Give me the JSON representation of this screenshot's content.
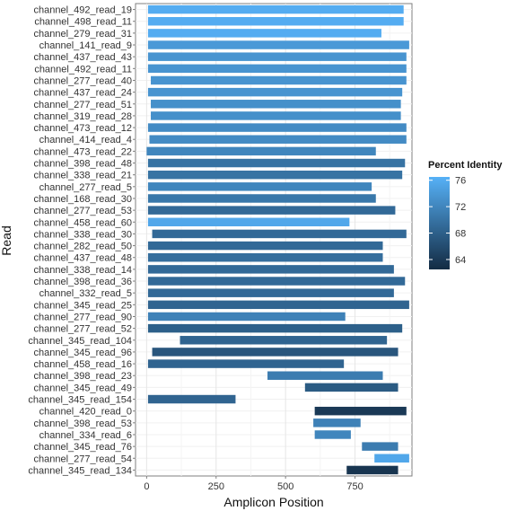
{
  "chart_data": {
    "type": "bar",
    "orientation": "horizontal-range",
    "xlabel": "Amplicon Position",
    "ylabel": "Read",
    "xlim": [
      -40,
      955
    ],
    "xticks": [
      0,
      250,
      500,
      750
    ],
    "grid": true,
    "legend": {
      "title": "Percent Identity",
      "placement": "right",
      "min": 62.5,
      "max": 76.5,
      "ticks": [
        64,
        68,
        72,
        76
      ],
      "color_low": "#132B43",
      "color_high": "#56B1F7"
    },
    "reads": [
      {
        "name": "channel_492_read_19",
        "start": 5,
        "end": 925,
        "identity": 76
      },
      {
        "name": "channel_498_read_11",
        "start": 5,
        "end": 925,
        "identity": 76
      },
      {
        "name": "channel_279_read_31",
        "start": 5,
        "end": 845,
        "identity": 76
      },
      {
        "name": "channel_141_read_9",
        "start": 5,
        "end": 945,
        "identity": 74
      },
      {
        "name": "channel_437_read_43",
        "start": 5,
        "end": 935,
        "identity": 73.5
      },
      {
        "name": "channel_492_read_11",
        "start": 5,
        "end": 935,
        "identity": 73.5
      },
      {
        "name": "channel_277_read_40",
        "start": 15,
        "end": 935,
        "identity": 73.5
      },
      {
        "name": "channel_437_read_24",
        "start": 5,
        "end": 920,
        "identity": 73.5
      },
      {
        "name": "channel_277_read_51",
        "start": 15,
        "end": 915,
        "identity": 73
      },
      {
        "name": "channel_319_read_28",
        "start": 15,
        "end": 915,
        "identity": 73
      },
      {
        "name": "channel_473_read_12",
        "start": 5,
        "end": 935,
        "identity": 72.5
      },
      {
        "name": "channel_414_read_4",
        "start": 10,
        "end": 935,
        "identity": 72.5
      },
      {
        "name": "channel_473_read_22",
        "start": 0,
        "end": 825,
        "identity": 72
      },
      {
        "name": "channel_398_read_48",
        "start": 5,
        "end": 930,
        "identity": 70
      },
      {
        "name": "channel_338_read_21",
        "start": 5,
        "end": 920,
        "identity": 70
      },
      {
        "name": "channel_277_read_5",
        "start": 5,
        "end": 810,
        "identity": 72
      },
      {
        "name": "channel_168_read_30",
        "start": 5,
        "end": 825,
        "identity": 70.5
      },
      {
        "name": "channel_277_read_53",
        "start": 5,
        "end": 895,
        "identity": 69
      },
      {
        "name": "channel_458_read_60",
        "start": 5,
        "end": 730,
        "identity": 75.5
      },
      {
        "name": "channel_338_read_30",
        "start": 20,
        "end": 935,
        "identity": 69
      },
      {
        "name": "channel_282_read_50",
        "start": 5,
        "end": 850,
        "identity": 69
      },
      {
        "name": "channel_437_read_48",
        "start": 5,
        "end": 850,
        "identity": 69.5
      },
      {
        "name": "channel_338_read_14",
        "start": 5,
        "end": 890,
        "identity": 69
      },
      {
        "name": "channel_398_read_36",
        "start": 5,
        "end": 930,
        "identity": 69
      },
      {
        "name": "channel_332_read_5",
        "start": 5,
        "end": 890,
        "identity": 69
      },
      {
        "name": "channel_345_read_25",
        "start": 5,
        "end": 945,
        "identity": 68.5
      },
      {
        "name": "channel_277_read_90",
        "start": 5,
        "end": 715,
        "identity": 71.5
      },
      {
        "name": "channel_277_read_52",
        "start": 5,
        "end": 920,
        "identity": 68
      },
      {
        "name": "channel_345_read_104",
        "start": 120,
        "end": 865,
        "identity": 68.5
      },
      {
        "name": "channel_345_read_96",
        "start": 20,
        "end": 905,
        "identity": 67
      },
      {
        "name": "channel_458_read_16",
        "start": 5,
        "end": 710,
        "identity": 68.5
      },
      {
        "name": "channel_398_read_23",
        "start": 435,
        "end": 850,
        "identity": 71
      },
      {
        "name": "channel_345_read_49",
        "start": 570,
        "end": 905,
        "identity": 67.5
      },
      {
        "name": "channel_345_read_154",
        "start": 5,
        "end": 320,
        "identity": 68.5
      },
      {
        "name": "channel_420_read_0",
        "start": 605,
        "end": 935,
        "identity": 64
      },
      {
        "name": "channel_398_read_53",
        "start": 600,
        "end": 770,
        "identity": 71.5
      },
      {
        "name": "channel_334_read_6",
        "start": 605,
        "end": 735,
        "identity": 72
      },
      {
        "name": "channel_345_read_76",
        "start": 775,
        "end": 905,
        "identity": 71
      },
      {
        "name": "channel_277_read_54",
        "start": 820,
        "end": 945,
        "identity": 75.5
      },
      {
        "name": "channel_345_read_134",
        "start": 720,
        "end": 905,
        "identity": 63.5
      }
    ]
  }
}
